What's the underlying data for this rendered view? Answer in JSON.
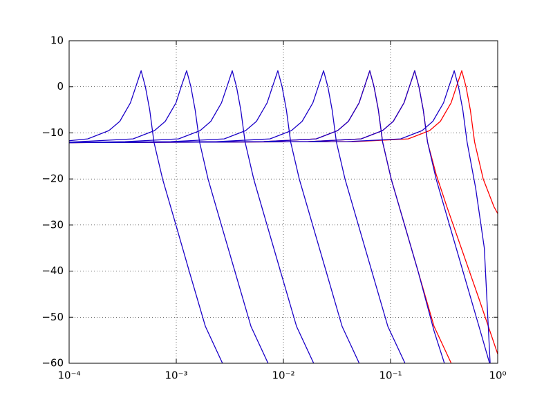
{
  "chart_data": {
    "type": "line",
    "xscale": "log",
    "grid": true,
    "xlim": [
      0.0001,
      1
    ],
    "ylim": [
      -60,
      10
    ],
    "xticks": [
      {
        "value": 0.0001,
        "label": "10⁻⁴"
      },
      {
        "value": 0.001,
        "label": "10⁻³"
      },
      {
        "value": 0.01,
        "label": "10⁻²"
      },
      {
        "value": 0.1,
        "label": "10⁻¹"
      },
      {
        "value": 1,
        "label": "10⁰"
      }
    ],
    "yticks": [
      {
        "value": -60,
        "label": "−60"
      },
      {
        "value": -50,
        "label": "−50"
      },
      {
        "value": -40,
        "label": "−40"
      },
      {
        "value": -30,
        "label": "−30"
      },
      {
        "value": -20,
        "label": "−20"
      },
      {
        "value": -10,
        "label": "−10"
      },
      0,
      10
    ],
    "series": [
      {
        "color": "#ff0000",
        "x": [
          0.0001,
          0.0064,
          0.02022,
          0.03206,
          0.04038,
          0.05082,
          0.05702,
          0.064,
          0.07014,
          0.07693,
          0.08435,
          0.1014,
          0.1277,
          0.1804,
          0.2548,
          0.3683
        ],
        "values": [
          -12.1,
          -11.9,
          -11.3,
          -9.5,
          -7.5,
          -3.5,
          0,
          3.5,
          0,
          -5,
          -12,
          -20,
          -28,
          -40,
          -52,
          -60
        ]
      },
      {
        "color": "#ff0000",
        "x": [
          0.0001,
          0.0168,
          0.05309,
          0.08417,
          0.106,
          0.1334,
          0.1497,
          0.168,
          0.1841,
          0.2019,
          0.2214,
          0.2663,
          0.3352,
          0.4734,
          0.6688,
          1
        ],
        "values": [
          -12.1,
          -11.9,
          -11.3,
          -9.5,
          -7.5,
          -3.5,
          0,
          3.5,
          0,
          -5,
          -12,
          -19,
          -26,
          -36,
          -46,
          -58
        ]
      },
      {
        "color": "#ff0000",
        "x": [
          0.0001,
          0.0462,
          0.146,
          0.2315,
          0.2915,
          0.3668,
          0.4116,
          0.462,
          0.5064,
          0.5553,
          0.6089,
          0.7323,
          0.9217,
          1
        ],
        "values": [
          -12.1,
          -11.9,
          -11.3,
          -9.5,
          -7.5,
          -3.5,
          0,
          3.5,
          0,
          -5,
          -12,
          -20,
          -26,
          -27.5
        ]
      },
      {
        "color": "#1a00c8",
        "x": [
          0.0001,
          0.000149,
          0.000235,
          0.000297,
          0.000373,
          0.000419,
          0.00047,
          0.000515,
          0.000565,
          0.000619,
          0.000745,
          0.000938,
          0.00132,
          0.00187,
          0.0027
        ],
        "values": [
          -11.7,
          -11.3,
          -9.5,
          -7.5,
          -3.5,
          0,
          3.5,
          0,
          -5,
          -12,
          -20,
          -28,
          -40,
          -52,
          -60
        ]
      },
      {
        "color": "#1a00c8",
        "x": [
          0.0001,
          0.000125,
          0.000395,
          0.000626,
          0.000789,
          0.000993,
          0.00111,
          0.00125,
          0.00137,
          0.0015,
          0.00165,
          0.00198,
          0.00249,
          0.00352,
          0.00498,
          0.00719
        ],
        "values": [
          -12,
          -11.9,
          -11.3,
          -9.5,
          -7.5,
          -3.5,
          0,
          3.5,
          0,
          -5,
          -12,
          -20,
          -28,
          -40,
          -52,
          -60
        ]
      },
      {
        "color": "#1a00c8",
        "x": [
          0.0001,
          0.000333,
          0.00105,
          0.00167,
          0.0021,
          0.00264,
          0.00297,
          0.00333,
          0.00365,
          0.004,
          0.00439,
          0.00528,
          0.00664,
          0.00938,
          0.01326,
          0.01916
        ],
        "values": [
          -12.1,
          -11.9,
          -11.3,
          -9.5,
          -7.5,
          -3.5,
          0,
          3.5,
          0,
          -5,
          -12,
          -20,
          -28,
          -40,
          -52,
          -60
        ]
      },
      {
        "color": "#1a00c8",
        "x": [
          0.0001,
          0.000887,
          0.0028,
          0.00444,
          0.0056,
          0.00704,
          0.0079,
          0.00887,
          0.00972,
          0.01066,
          0.01169,
          0.01406,
          0.0177,
          0.025,
          0.0353,
          0.051
        ],
        "values": [
          -12.1,
          -11.9,
          -11.3,
          -9.5,
          -7.5,
          -3.5,
          0,
          3.5,
          0,
          -5,
          -12,
          -20,
          -28,
          -40,
          -52,
          -60
        ]
      },
      {
        "color": "#1a00c8",
        "x": [
          0.0001,
          0.00237,
          0.00749,
          0.01187,
          0.01495,
          0.01882,
          0.02112,
          0.0237,
          0.026,
          0.02849,
          0.03124,
          0.03756,
          0.04728,
          0.06679,
          0.09435,
          0.1364
        ],
        "values": [
          -12.1,
          -11.9,
          -11.3,
          -9.5,
          -7.5,
          -3.5,
          0,
          3.5,
          0,
          -5,
          -12,
          -20,
          -28,
          -40,
          -52,
          -60
        ]
      },
      {
        "color": "#1a00c8",
        "x": [
          0.0001,
          0.0064,
          0.02022,
          0.03206,
          0.04038,
          0.05082,
          0.05702,
          0.064,
          0.07014,
          0.07693,
          0.08435,
          0.1014,
          0.1277,
          0.1804,
          0.2548,
          0.318
        ],
        "values": [
          -12.1,
          -11.9,
          -11.3,
          -9.5,
          -7.5,
          -3.5,
          0,
          3.5,
          0,
          -5,
          -12,
          -20,
          -28,
          -40,
          -53,
          -60
        ]
      },
      {
        "color": "#1a00c8",
        "x": [
          0.0001,
          0.0168,
          0.05309,
          0.08417,
          0.106,
          0.1334,
          0.1497,
          0.168,
          0.1841,
          0.2019,
          0.2214,
          0.2663,
          0.3352,
          0.4734,
          0.6688,
          0.84
        ],
        "values": [
          -12.1,
          -11.9,
          -11.3,
          -9.5,
          -7.5,
          -3.5,
          0,
          3.5,
          0,
          -5,
          -12,
          -20,
          -28,
          -40,
          -52,
          -60
        ]
      },
      {
        "color": "#1a00c8",
        "x": [
          0.0001,
          0.0393,
          0.1243,
          0.197,
          0.248,
          0.312,
          0.35,
          0.393,
          0.4307,
          0.4724,
          0.518,
          0.6229,
          0.75,
          0.85
        ],
        "values": [
          -12.1,
          -11.9,
          -11.3,
          -9.5,
          -7.5,
          -3.5,
          0,
          3.5,
          0,
          -5,
          -12,
          -22,
          -35,
          -60
        ]
      }
    ]
  }
}
